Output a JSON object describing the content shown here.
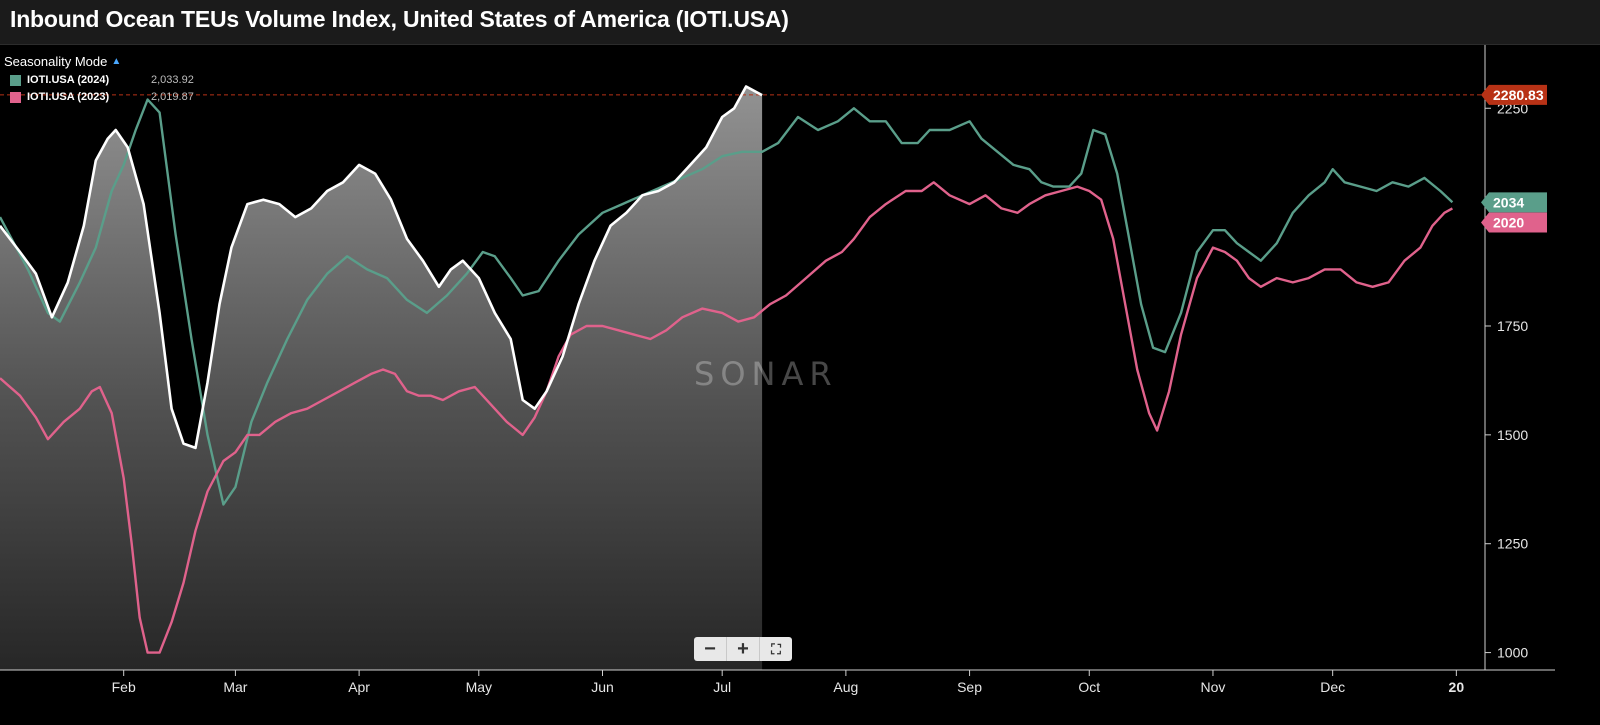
{
  "header": {
    "title": "Inbound Ocean TEUs Volume Index, United States of America (IOTI.USA)"
  },
  "legend": {
    "mode_label": "Seasonality Mode",
    "mode_icon": "caret-up-icon",
    "items": [
      {
        "name": "IOTI.USA (2024)",
        "value": "2,033.92",
        "color": "#5a9e8a"
      },
      {
        "name": "IOTI.USA (2023)",
        "value": "2,019.87",
        "color": "#e0628c"
      }
    ]
  },
  "zoom": {
    "minus": "−",
    "plus": "+",
    "fullscreen": "⛶"
  },
  "watermark": "SONAR",
  "colors": {
    "current": "#ffffff",
    "y2024": "#5a9e8a",
    "y2023": "#e0628c",
    "crosshair": "#d33a1a",
    "background": "#000000"
  },
  "chart_data": {
    "type": "line",
    "xlabel": "",
    "ylabel": "",
    "ylim": [
      960,
      2370
    ],
    "y_ticks": [
      1000,
      1250,
      1500,
      1750,
      2000,
      2250
    ],
    "x_ticks": [
      "Feb",
      "Mar",
      "Apr",
      "May",
      "Jun",
      "Jul",
      "Aug",
      "Sep",
      "Oct",
      "Nov",
      "Dec",
      "20"
    ],
    "x_domain": "day of year, 0 = Jan 1, 365 = Jan 1 (next year)",
    "x_tick_days": [
      31,
      59,
      90,
      120,
      151,
      181,
      212,
      243,
      273,
      304,
      334,
      365
    ],
    "price_tags": [
      {
        "label": "2280.83",
        "value": 2280.83,
        "color": "#b83216"
      },
      {
        "label": "2034",
        "value": 2033.92,
        "color": "#5a9e8a"
      },
      {
        "label": "2020",
        "value": 2019.87,
        "color": "#e0628c"
      }
    ],
    "series": [
      {
        "name": "IOTI.USA (2024)",
        "color": "#5a9e8a",
        "points": [
          [
            0,
            2000
          ],
          [
            7,
            1880
          ],
          [
            12,
            1780
          ],
          [
            15,
            1760
          ],
          [
            20,
            1850
          ],
          [
            24,
            1930
          ],
          [
            28,
            2060
          ],
          [
            31,
            2120
          ],
          [
            34,
            2200
          ],
          [
            37,
            2270
          ],
          [
            40,
            2240
          ],
          [
            44,
            1960
          ],
          [
            48,
            1720
          ],
          [
            52,
            1500
          ],
          [
            56,
            1340
          ],
          [
            59,
            1380
          ],
          [
            63,
            1530
          ],
          [
            67,
            1620
          ],
          [
            72,
            1720
          ],
          [
            77,
            1810
          ],
          [
            82,
            1870
          ],
          [
            87,
            1910
          ],
          [
            92,
            1880
          ],
          [
            97,
            1860
          ],
          [
            102,
            1810
          ],
          [
            107,
            1780
          ],
          [
            112,
            1820
          ],
          [
            117,
            1870
          ],
          [
            121,
            1920
          ],
          [
            124,
            1910
          ],
          [
            128,
            1860
          ],
          [
            131,
            1820
          ],
          [
            135,
            1830
          ],
          [
            140,
            1900
          ],
          [
            145,
            1960
          ],
          [
            151,
            2010
          ],
          [
            156,
            2030
          ],
          [
            161,
            2050
          ],
          [
            166,
            2070
          ],
          [
            171,
            2090
          ],
          [
            176,
            2110
          ],
          [
            181,
            2140
          ],
          [
            186,
            2150
          ],
          [
            191,
            2150
          ],
          [
            195,
            2170
          ],
          [
            200,
            2230
          ],
          [
            205,
            2200
          ],
          [
            210,
            2220
          ],
          [
            214,
            2250
          ],
          [
            218,
            2220
          ],
          [
            222,
            2220
          ],
          [
            226,
            2170
          ],
          [
            230,
            2170
          ],
          [
            233,
            2200
          ],
          [
            238,
            2200
          ],
          [
            243,
            2220
          ],
          [
            246,
            2180
          ],
          [
            250,
            2150
          ],
          [
            254,
            2120
          ],
          [
            258,
            2110
          ],
          [
            261,
            2080
          ],
          [
            264,
            2070
          ],
          [
            268,
            2070
          ],
          [
            271,
            2100
          ],
          [
            274,
            2200
          ],
          [
            277,
            2190
          ],
          [
            280,
            2100
          ],
          [
            283,
            1950
          ],
          [
            286,
            1800
          ],
          [
            289,
            1700
          ],
          [
            292,
            1690
          ],
          [
            296,
            1780
          ],
          [
            300,
            1920
          ],
          [
            304,
            1970
          ],
          [
            307,
            1970
          ],
          [
            310,
            1940
          ],
          [
            313,
            1920
          ],
          [
            316,
            1900
          ],
          [
            320,
            1940
          ],
          [
            324,
            2010
          ],
          [
            328,
            2050
          ],
          [
            332,
            2080
          ],
          [
            334,
            2110
          ],
          [
            337,
            2080
          ],
          [
            341,
            2070
          ],
          [
            345,
            2060
          ],
          [
            349,
            2080
          ],
          [
            353,
            2070
          ],
          [
            357,
            2090
          ],
          [
            361,
            2060
          ],
          [
            364,
            2034
          ]
        ]
      },
      {
        "name": "IOTI.USA (2023)",
        "color": "#e0628c",
        "points": [
          [
            0,
            1630
          ],
          [
            5,
            1590
          ],
          [
            9,
            1540
          ],
          [
            12,
            1490
          ],
          [
            16,
            1530
          ],
          [
            20,
            1560
          ],
          [
            23,
            1600
          ],
          [
            25,
            1610
          ],
          [
            28,
            1550
          ],
          [
            31,
            1400
          ],
          [
            33,
            1250
          ],
          [
            35,
            1080
          ],
          [
            37,
            1000
          ],
          [
            40,
            1000
          ],
          [
            43,
            1070
          ],
          [
            46,
            1160
          ],
          [
            49,
            1280
          ],
          [
            52,
            1370
          ],
          [
            56,
            1440
          ],
          [
            59,
            1460
          ],
          [
            62,
            1500
          ],
          [
            65,
            1500
          ],
          [
            69,
            1530
          ],
          [
            73,
            1550
          ],
          [
            77,
            1560
          ],
          [
            81,
            1580
          ],
          [
            85,
            1600
          ],
          [
            89,
            1620
          ],
          [
            93,
            1640
          ],
          [
            96,
            1650
          ],
          [
            99,
            1640
          ],
          [
            102,
            1600
          ],
          [
            105,
            1590
          ],
          [
            108,
            1590
          ],
          [
            111,
            1580
          ],
          [
            115,
            1600
          ],
          [
            119,
            1610
          ],
          [
            123,
            1570
          ],
          [
            127,
            1530
          ],
          [
            131,
            1500
          ],
          [
            134,
            1540
          ],
          [
            137,
            1600
          ],
          [
            140,
            1680
          ],
          [
            143,
            1730
          ],
          [
            147,
            1750
          ],
          [
            151,
            1750
          ],
          [
            155,
            1740
          ],
          [
            159,
            1730
          ],
          [
            163,
            1720
          ],
          [
            167,
            1740
          ],
          [
            171,
            1770
          ],
          [
            176,
            1790
          ],
          [
            181,
            1780
          ],
          [
            185,
            1760
          ],
          [
            189,
            1770
          ],
          [
            193,
            1800
          ],
          [
            197,
            1820
          ],
          [
            202,
            1860
          ],
          [
            207,
            1900
          ],
          [
            211,
            1920
          ],
          [
            214,
            1950
          ],
          [
            218,
            2000
          ],
          [
            222,
            2030
          ],
          [
            227,
            2060
          ],
          [
            231,
            2060
          ],
          [
            234,
            2080
          ],
          [
            238,
            2050
          ],
          [
            243,
            2030
          ],
          [
            247,
            2050
          ],
          [
            251,
            2020
          ],
          [
            255,
            2010
          ],
          [
            258,
            2030
          ],
          [
            262,
            2050
          ],
          [
            266,
            2060
          ],
          [
            270,
            2070
          ],
          [
            273,
            2060
          ],
          [
            276,
            2040
          ],
          [
            279,
            1950
          ],
          [
            282,
            1800
          ],
          [
            285,
            1650
          ],
          [
            288,
            1550
          ],
          [
            290,
            1510
          ],
          [
            293,
            1600
          ],
          [
            296,
            1730
          ],
          [
            300,
            1860
          ],
          [
            304,
            1930
          ],
          [
            307,
            1920
          ],
          [
            310,
            1900
          ],
          [
            313,
            1860
          ],
          [
            316,
            1840
          ],
          [
            320,
            1860
          ],
          [
            324,
            1850
          ],
          [
            328,
            1860
          ],
          [
            332,
            1880
          ],
          [
            336,
            1880
          ],
          [
            340,
            1850
          ],
          [
            344,
            1840
          ],
          [
            348,
            1850
          ],
          [
            352,
            1900
          ],
          [
            356,
            1930
          ],
          [
            359,
            1980
          ],
          [
            362,
            2010
          ],
          [
            364,
            2020
          ]
        ]
      },
      {
        "name": "IOTI.USA (current)",
        "color": "#ffffff",
        "fill": true,
        "points": [
          [
            0,
            1980
          ],
          [
            5,
            1920
          ],
          [
            9,
            1870
          ],
          [
            13,
            1770
          ],
          [
            17,
            1850
          ],
          [
            21,
            1980
          ],
          [
            24,
            2130
          ],
          [
            27,
            2180
          ],
          [
            29,
            2200
          ],
          [
            32,
            2160
          ],
          [
            36,
            2030
          ],
          [
            40,
            1780
          ],
          [
            43,
            1560
          ],
          [
            46,
            1480
          ],
          [
            49,
            1470
          ],
          [
            52,
            1620
          ],
          [
            55,
            1800
          ],
          [
            58,
            1930
          ],
          [
            62,
            2030
          ],
          [
            66,
            2040
          ],
          [
            70,
            2030
          ],
          [
            74,
            2000
          ],
          [
            78,
            2020
          ],
          [
            82,
            2060
          ],
          [
            86,
            2080
          ],
          [
            90,
            2120
          ],
          [
            94,
            2100
          ],
          [
            98,
            2040
          ],
          [
            102,
            1950
          ],
          [
            106,
            1900
          ],
          [
            110,
            1840
          ],
          [
            113,
            1880
          ],
          [
            116,
            1900
          ],
          [
            120,
            1860
          ],
          [
            124,
            1780
          ],
          [
            128,
            1720
          ],
          [
            131,
            1580
          ],
          [
            134,
            1560
          ],
          [
            137,
            1600
          ],
          [
            141,
            1680
          ],
          [
            145,
            1800
          ],
          [
            149,
            1900
          ],
          [
            153,
            1980
          ],
          [
            157,
            2010
          ],
          [
            161,
            2050
          ],
          [
            165,
            2060
          ],
          [
            169,
            2080
          ],
          [
            173,
            2120
          ],
          [
            177,
            2160
          ],
          [
            181,
            2230
          ],
          [
            184,
            2250
          ],
          [
            187,
            2300
          ],
          [
            191,
            2280
          ]
        ]
      }
    ]
  }
}
